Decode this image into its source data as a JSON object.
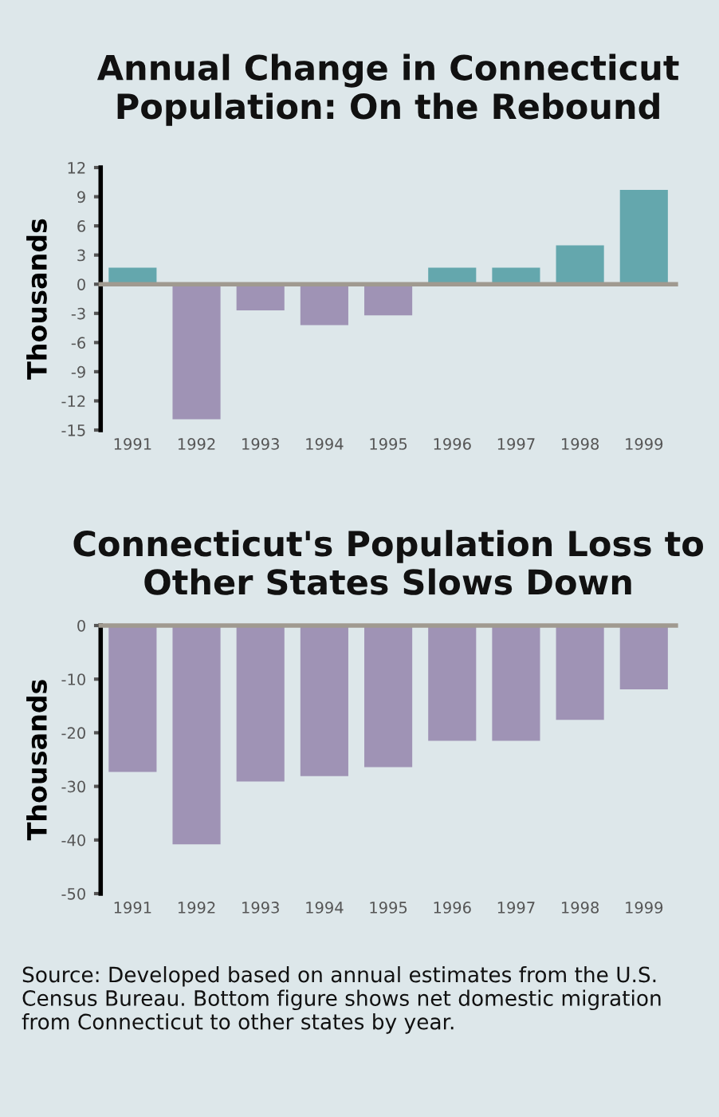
{
  "chart_data": [
    {
      "type": "bar",
      "title": "Annual Change in Connecticut\nPopulation: On the Rebound",
      "ylabel": "Thousands",
      "categories": [
        "1991",
        "1992",
        "1993",
        "1994",
        "1995",
        "1996",
        "1997",
        "1998",
        "1999"
      ],
      "values": [
        1.7,
        -13.9,
        -2.7,
        -4.2,
        -3.2,
        1.7,
        1.7,
        4.0,
        9.7
      ],
      "colors": [
        "#64a7ad",
        "#9f93b5",
        "#9f93b5",
        "#9f93b5",
        "#9f93b5",
        "#64a7ad",
        "#64a7ad",
        "#64a7ad",
        "#64a7ad"
      ],
      "ylim": [
        -15,
        12
      ],
      "yticks": [
        12,
        9,
        6,
        3,
        0,
        -3,
        -6,
        -9,
        -12,
        -15
      ]
    },
    {
      "type": "bar",
      "title": "Connecticut's Population Loss to\nOther States Slows Down",
      "ylabel": "Thousands",
      "categories": [
        "1991",
        "1992",
        "1993",
        "1994",
        "1995",
        "1996",
        "1997",
        "1998",
        "1999"
      ],
      "values": [
        -27.3,
        -40.8,
        -29.1,
        -28.1,
        -26.4,
        -21.5,
        -21.5,
        -17.6,
        -11.9
      ],
      "color": "#9f93b5",
      "ylim": [
        -50,
        0
      ],
      "yticks": [
        0,
        -10,
        -20,
        -30,
        -40,
        -50
      ],
      "annotations": [
        "Source: Developed based on annual estimates from the U.S. Census Bureau. Bottom figure shows net domestic migration from Connecticut to other states by year."
      ]
    }
  ]
}
